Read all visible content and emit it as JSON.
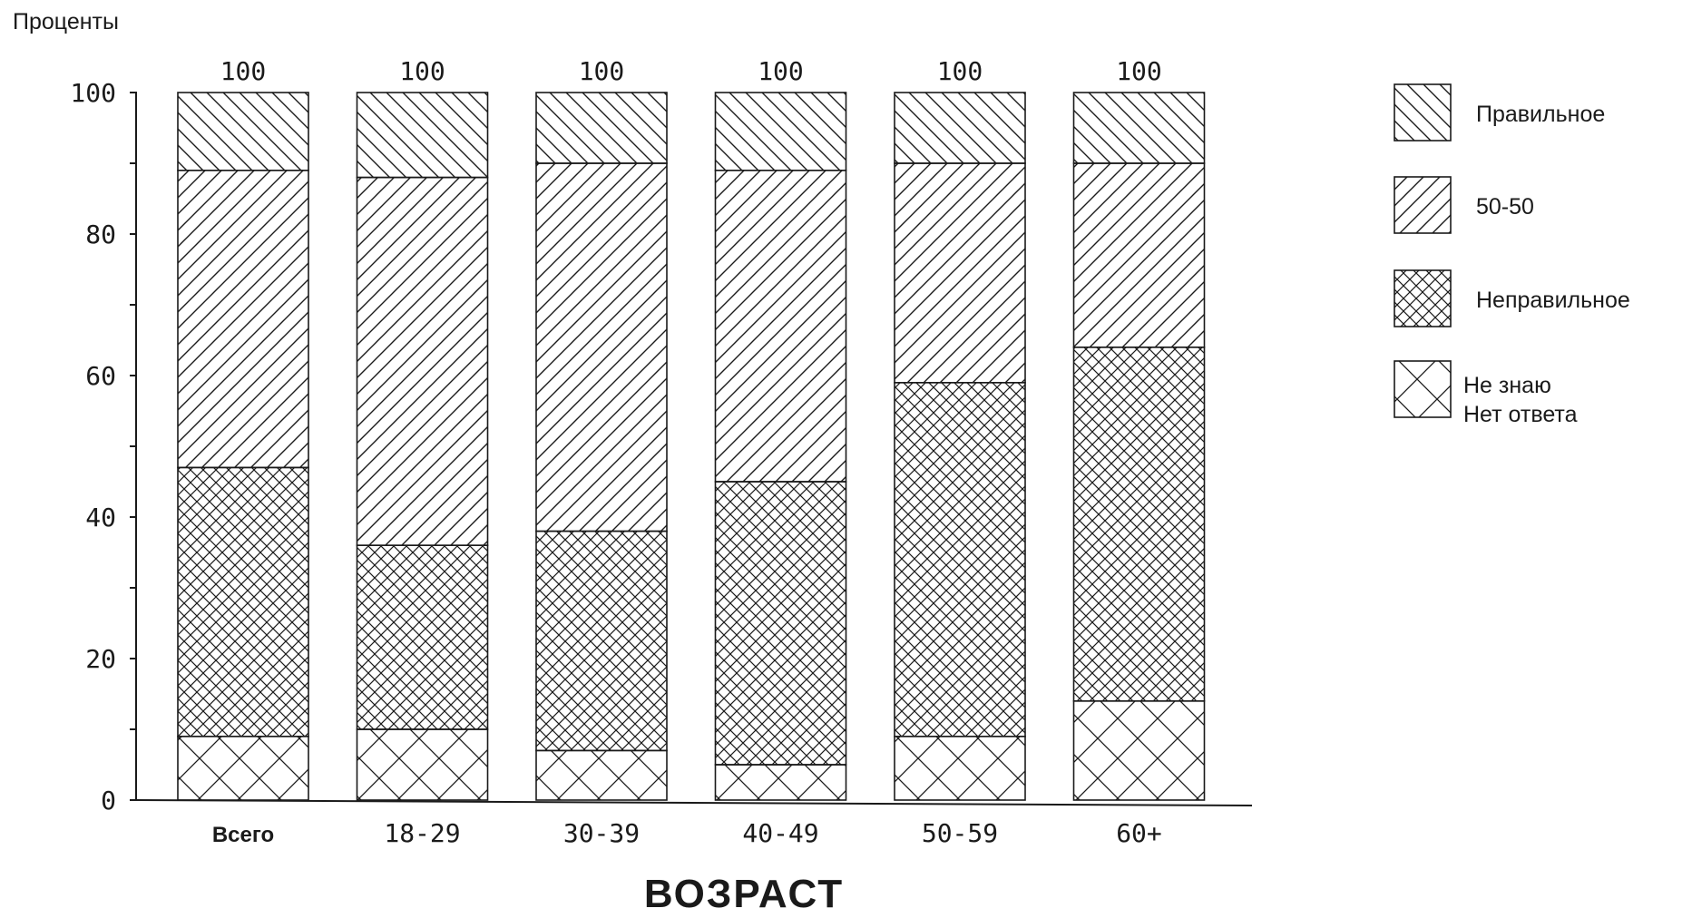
{
  "chart_data": {
    "type": "bar",
    "stacked": true,
    "ylabel": "Проценты",
    "xlabel": "ВОЗРАСТ",
    "ylim": [
      0,
      100
    ],
    "yticks": [
      "0",
      "20",
      "40",
      "60",
      "80",
      "100"
    ],
    "categories": [
      "Всего",
      "18-29",
      "30-39",
      "40-49",
      "50-59",
      "60+"
    ],
    "totals": [
      "100",
      "100",
      "100",
      "100",
      "100",
      "100"
    ],
    "series": [
      {
        "name": "Не знаю\nНет ответа",
        "pattern": "cross-wide",
        "values": [
          9,
          10,
          7,
          5,
          9,
          14
        ]
      },
      {
        "name": "Неправильное",
        "pattern": "cross-dense",
        "values": [
          38,
          26,
          31,
          40,
          50,
          50
        ]
      },
      {
        "name": "50-50",
        "pattern": "diag-forward",
        "values": [
          42,
          52,
          52,
          44,
          31,
          26
        ]
      },
      {
        "name": "Правильное",
        "pattern": "diag-back",
        "values": [
          11,
          12,
          10,
          11,
          10,
          10
        ]
      }
    ],
    "legend_order": [
      "Правильное",
      "50-50",
      "Неправильное",
      "Не знаю\nНет ответа"
    ],
    "legend_position": "right",
    "grid": false,
    "colors": {
      "ink": "#1a1a1a",
      "background": "#ffffff"
    }
  }
}
